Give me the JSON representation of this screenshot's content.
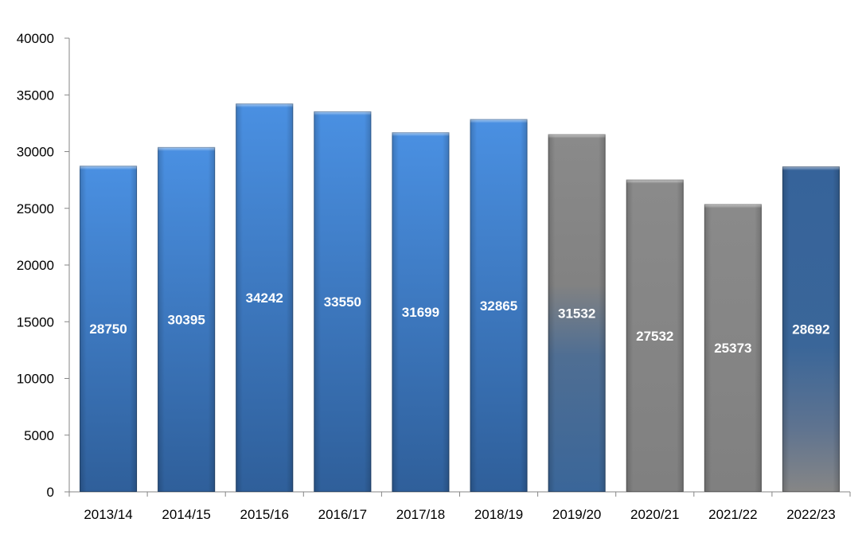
{
  "chart_data": {
    "type": "bar",
    "title": "",
    "xlabel": "",
    "ylabel": "",
    "ylim": [
      0,
      40000
    ],
    "yticks": [
      0,
      5000,
      10000,
      15000,
      20000,
      25000,
      30000,
      35000,
      40000
    ],
    "grid": false,
    "legend": "none",
    "categories": [
      "2013/14",
      "2014/15",
      "2015/16",
      "2016/17",
      "2017/18",
      "2018/19",
      "2019/20",
      "2020/21",
      "2021/22",
      "2022/23"
    ],
    "values": [
      28750,
      30395,
      34242,
      33550,
      31699,
      32865,
      31532,
      27532,
      25373,
      28692
    ],
    "bar_colors": [
      "blue",
      "blue",
      "blue",
      "blue",
      "blue",
      "blue",
      "grey-to-blue",
      "grey",
      "grey",
      "blue-to-grey"
    ]
  },
  "colors": {
    "blue_top": "#4a8fe0",
    "blue_bottom": "#2f5f99",
    "grey": "#868686",
    "dark_blue": "#3a6699"
  }
}
